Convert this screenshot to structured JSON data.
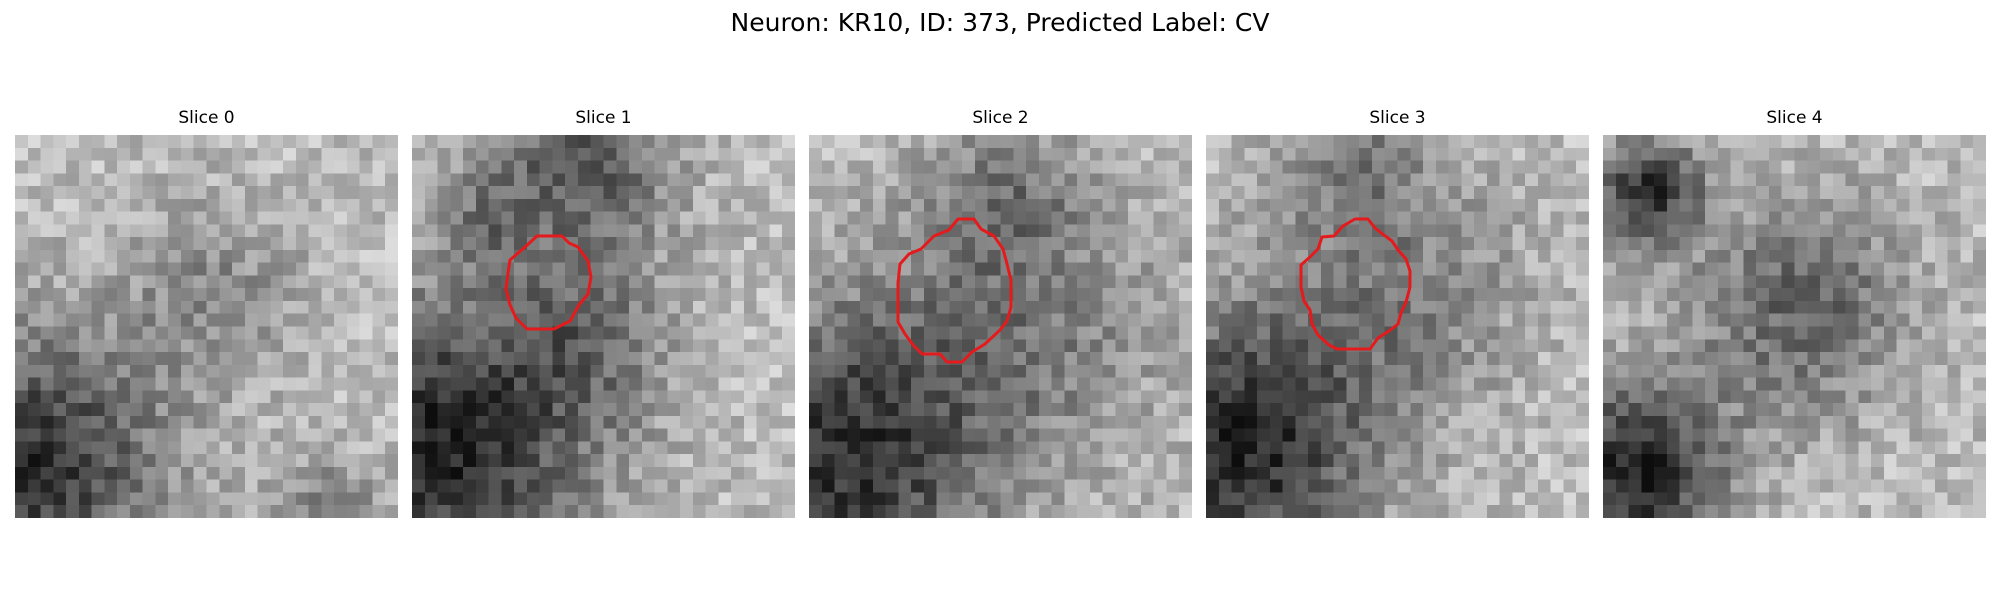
{
  "figure": {
    "title": "Neuron: KR10, ID: 373, Predicted Label: CV"
  },
  "panels": [
    {
      "title": "Slice 0",
      "has_contour": false
    },
    {
      "title": "Slice 1",
      "has_contour": true
    },
    {
      "title": "Slice 2",
      "has_contour": true
    },
    {
      "title": "Slice 3",
      "has_contour": true
    },
    {
      "title": "Slice 4",
      "has_contour": false
    }
  ],
  "colors": {
    "contour": "#e41a1c",
    "background": "#ffffff"
  },
  "image": {
    "colormap": "grayscale",
    "grid_cells": "30x30"
  }
}
